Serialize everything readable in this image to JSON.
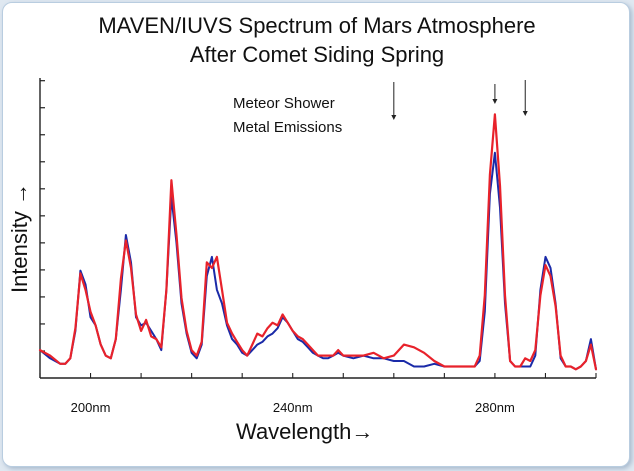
{
  "chart_data": {
    "type": "line",
    "title_line1": "MAVEN/IUVS Spectrum of Mars Atmosphere",
    "title_line2": "After Comet Siding Spring",
    "xlabel": "Wavelength→",
    "ylabel": "Intensity →",
    "xlim": [
      190,
      300
    ],
    "ylim": [
      0,
      100
    ],
    "x_ticks": [
      200,
      240,
      280
    ],
    "x_tick_labels": [
      "200nm",
      "240nm",
      "280nm"
    ],
    "y_tick_count": 11,
    "grid": false,
    "annotation": {
      "line1": "Meteor Shower",
      "line2": "Metal Emissions",
      "arrow_positions": [
        260,
        280,
        286
      ]
    },
    "colors": {
      "series_a": "#1a2aa8",
      "series_b": "#e8222b"
    },
    "x": [
      190,
      192,
      194,
      195,
      196,
      197,
      198,
      199,
      200,
      201,
      202,
      203,
      204,
      205,
      206,
      207,
      208,
      209,
      210,
      211,
      212,
      213,
      214,
      215,
      216,
      217,
      218,
      219,
      220,
      221,
      222,
      223,
      224,
      225,
      226,
      227,
      228,
      229,
      230,
      231,
      232,
      233,
      234,
      235,
      236,
      237,
      238,
      239,
      240,
      241,
      242,
      243,
      244,
      245,
      246,
      247,
      248,
      249,
      250,
      252,
      254,
      256,
      258,
      260,
      262,
      264,
      266,
      268,
      270,
      272,
      274,
      276,
      277,
      278,
      279,
      280,
      281,
      282,
      283,
      284,
      285,
      286,
      287,
      288,
      289,
      290,
      291,
      292,
      293,
      294,
      295,
      296,
      297,
      298,
      299,
      300
    ],
    "series": [
      {
        "name": "",
        "values": [
          8,
          5,
          3,
          3,
          5,
          15,
          37,
          32,
          20,
          17,
          10,
          6,
          5,
          12,
          30,
          50,
          40,
          20,
          17,
          18,
          15,
          12,
          8,
          30,
          64,
          47,
          25,
          14,
          7,
          5,
          10,
          35,
          42,
          30,
          25,
          17,
          12,
          10,
          7,
          6,
          8,
          10,
          11,
          13,
          14,
          16,
          20,
          18,
          15,
          12,
          11,
          9,
          7,
          6,
          5,
          5,
          6,
          7,
          6,
          5,
          6,
          5,
          5,
          4,
          4,
          2,
          2,
          3,
          2,
          2,
          2,
          2,
          4,
          22,
          65,
          80,
          60,
          25,
          4,
          2,
          2,
          2,
          2,
          6,
          30,
          42,
          38,
          25,
          5,
          2,
          2,
          1,
          2,
          4,
          12,
          1
        ]
      },
      {
        "name": "",
        "values": [
          8,
          6,
          3,
          3,
          5,
          16,
          36,
          30,
          22,
          17,
          10,
          6,
          5,
          12,
          34,
          48,
          38,
          21,
          15,
          19,
          13,
          12,
          9,
          30,
          70,
          50,
          27,
          15,
          8,
          6,
          11,
          40,
          38,
          42,
          30,
          18,
          14,
          11,
          8,
          6,
          10,
          14,
          13,
          16,
          18,
          17,
          21,
          18,
          15,
          13,
          12,
          10,
          8,
          6,
          6,
          6,
          6,
          8,
          6,
          6,
          6,
          7,
          5,
          6,
          10,
          9,
          7,
          4,
          2,
          2,
          2,
          2,
          6,
          28,
          72,
          94,
          68,
          28,
          4,
          2,
          2,
          5,
          4,
          8,
          28,
          39,
          35,
          24,
          6,
          2,
          2,
          1,
          2,
          4,
          10,
          1
        ]
      }
    ]
  }
}
